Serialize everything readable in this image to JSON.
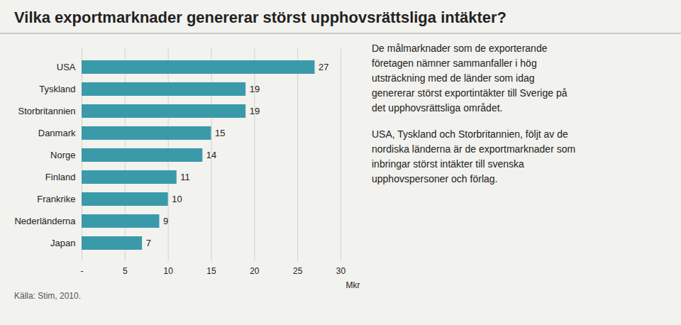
{
  "chart_data": {
    "type": "bar",
    "orientation": "horizontal",
    "title": "Vilka exportmarknader genererar störst upphovsrättsliga intäkter?",
    "categories": [
      "Japan",
      "Nederländerna",
      "Frankrike",
      "Finland",
      "Norge",
      "Danmark",
      "Storbritannien",
      "Tyskland",
      "USA"
    ],
    "values": [
      7,
      9,
      10,
      11,
      14,
      15,
      19,
      19,
      27
    ],
    "color": "#3a9aaa",
    "xlabel": "Mkr",
    "xlim": [
      0,
      30
    ],
    "xticks": [
      {
        "value": 0,
        "label": "-"
      },
      5,
      10,
      15,
      20,
      25,
      30
    ],
    "grid": true,
    "data_labels": true,
    "annotations": [
      [
        "De målmarknader som de exporterande",
        "företagen nämner sammanfaller i hög",
        "utsträckning med de länder som idag",
        "genererar störst exportintäkter till Sverige på",
        "det upphovsrättsliga området."
      ],
      [
        "USA, Tyskland och Storbritannien, följt av de",
        "nordiska länderna är de exportmarknader som",
        "inbringar störst intäkter till svenska",
        "upphovspersoner och förlag."
      ]
    ],
    "source": "Källa: Stim, 2010."
  }
}
